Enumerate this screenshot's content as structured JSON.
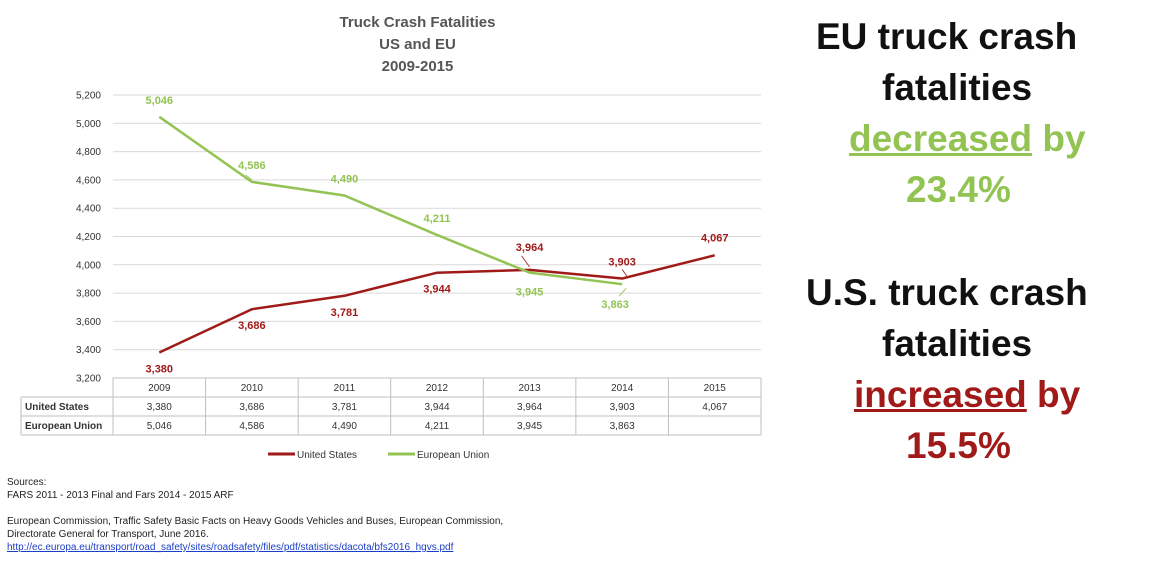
{
  "chart_data": {
    "type": "line",
    "title_lines": [
      "Truck Crash Fatalities",
      "US and EU",
      "2009-2015"
    ],
    "categories": [
      "2009",
      "2010",
      "2011",
      "2012",
      "2013",
      "2014",
      "2015"
    ],
    "ylim": [
      3200,
      5200
    ],
    "yticks": [
      "3,200",
      "3,400",
      "3,600",
      "3,800",
      "4,000",
      "4,200",
      "4,400",
      "4,600",
      "4,800",
      "5,000",
      "5,200"
    ],
    "grid": true,
    "legend_position": "bottom",
    "series": [
      {
        "name": "United States",
        "color": "#a11a1a",
        "values": [
          3380,
          3686,
          3781,
          3944,
          3964,
          3903,
          4067
        ],
        "labels": [
          "3,380",
          "3,686",
          "3,781",
          "3,944",
          "3,964",
          "3,903",
          "4,067"
        ]
      },
      {
        "name": "European Union",
        "color": "#92c353",
        "values": [
          5046,
          4586,
          4490,
          4211,
          3945,
          3863,
          null
        ],
        "labels": [
          "5,046",
          "4,586",
          "4,490",
          "4,211",
          "3,945",
          "3,863",
          ""
        ]
      }
    ]
  },
  "sources": {
    "heading": "Sources:",
    "line1": "FARS 2011 - 2013 Final and Fars 2014 - 2015 ARF",
    "line2": "European Commission, Traffic Safety Basic Facts on Heavy Goods Vehicles and Buses, European Commission,",
    "line3": "Directorate General for Transport, June 2016.",
    "link": "http://ec.europa.eu/transport/road_safety/sites/roadsafety/files/pdf/statistics/dacota/bfs2016_hgvs.pdf"
  },
  "callouts": {
    "eu_line1": "EU truck crash",
    "eu_line2": "fatalities",
    "eu_word": "decreased",
    "eu_by": " by",
    "eu_pct": "23.4%",
    "us_line1": "U.S. truck crash",
    "us_line2": "fatalities",
    "us_word": "increased",
    "us_by": " by",
    "us_pct": "15.5%"
  }
}
